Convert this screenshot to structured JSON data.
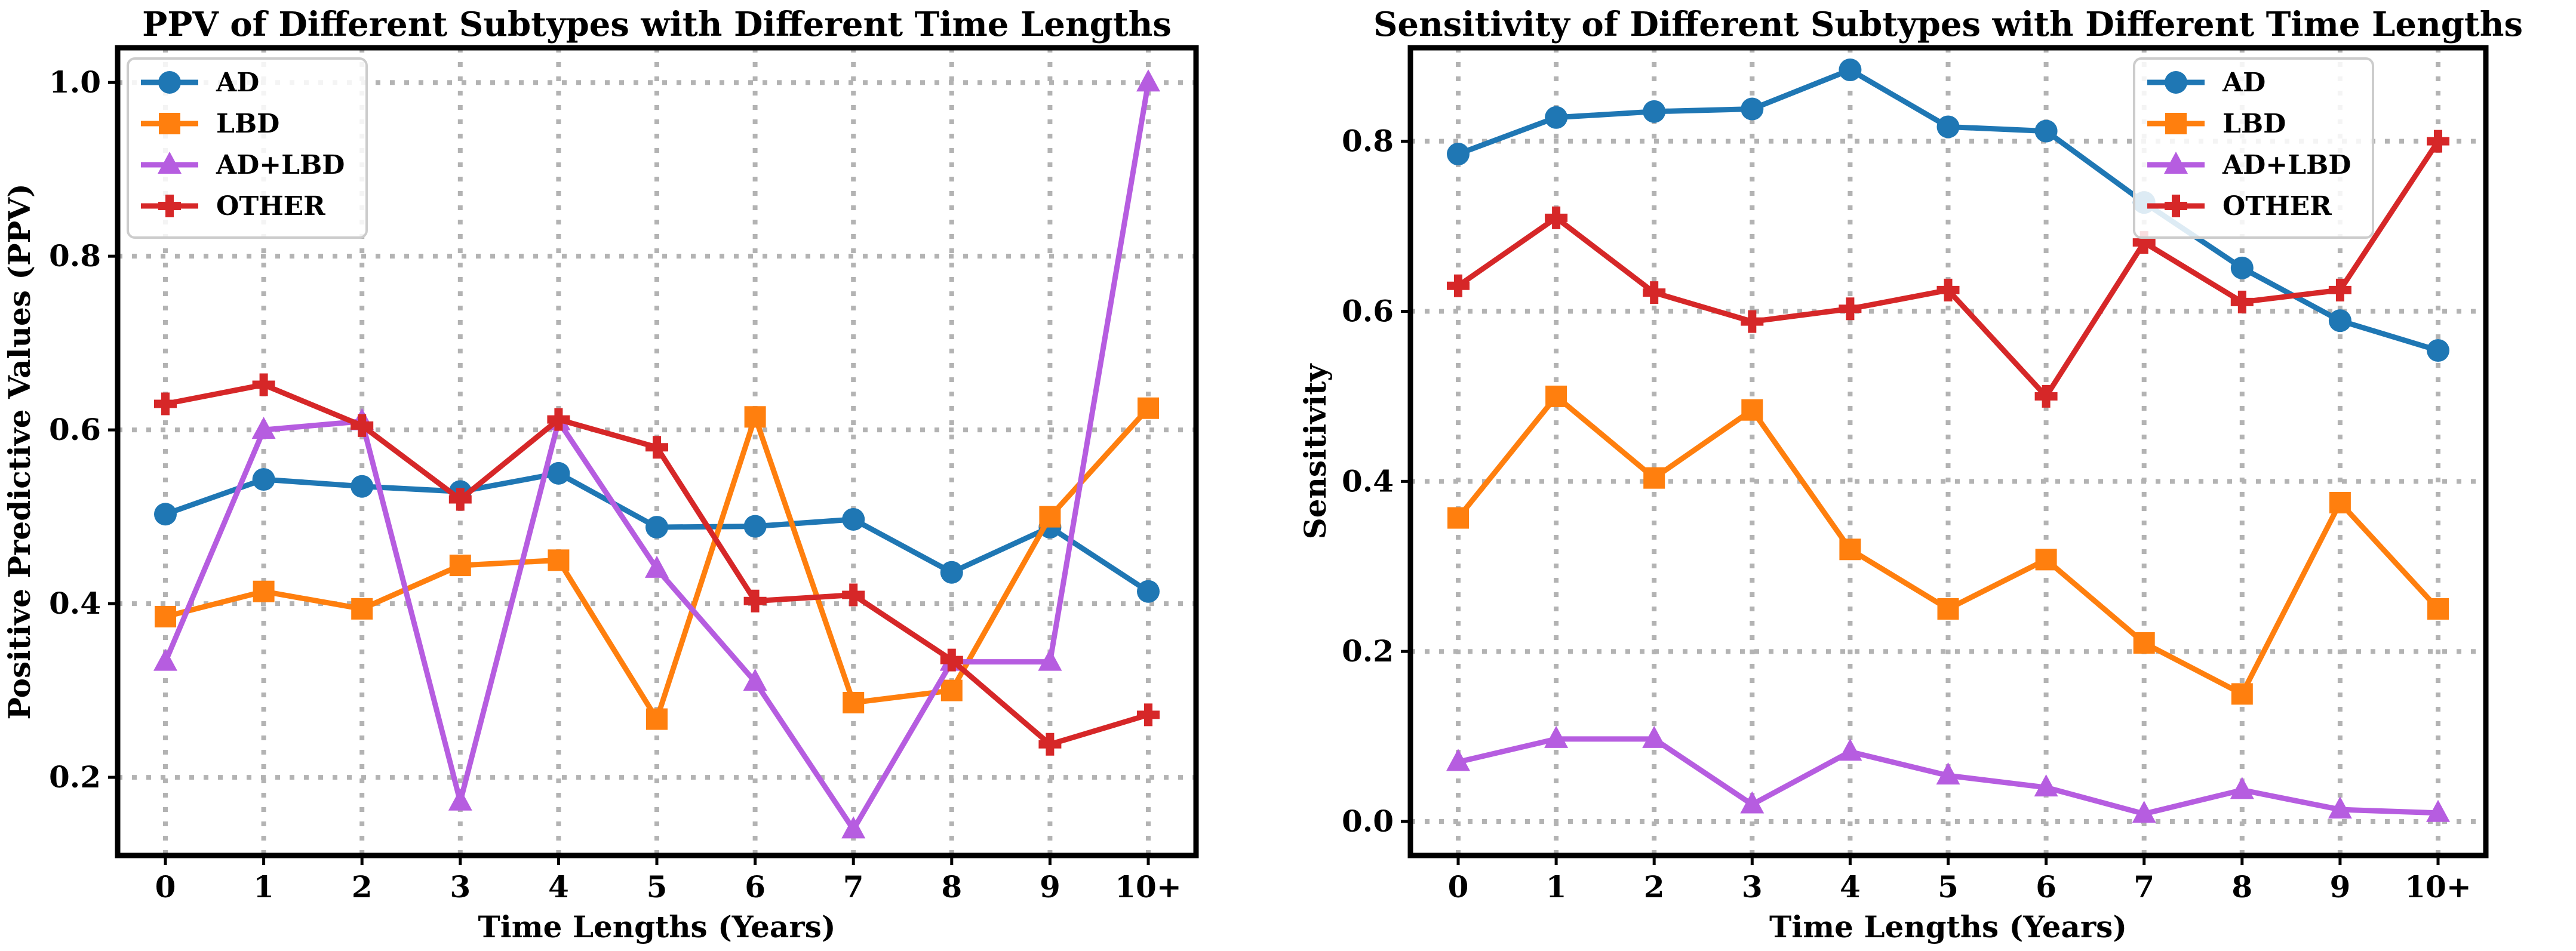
{
  "chart_data": [
    {
      "type": "line",
      "title": "PPV of Different Subtypes with Different Time Lengths",
      "xlabel": "Time Lengths (Years)",
      "ylabel": "Positive Predictive Values (PPV)",
      "categories": [
        "0",
        "1",
        "2",
        "3",
        "4",
        "5",
        "6",
        "7",
        "8",
        "9",
        "10+"
      ],
      "ylim": [
        0.11,
        1.04
      ],
      "yticks": [
        "0.2",
        "0.4",
        "0.6",
        "0.8",
        "1.0"
      ],
      "grid": true,
      "legend": "upper-left",
      "series": [
        {
          "name": "AD",
          "color": "#1f77b4",
          "marker": "circle",
          "values": [
            0.503,
            0.543,
            0.535,
            0.529,
            0.55,
            0.488,
            0.489,
            0.497,
            0.436,
            0.488,
            0.414
          ]
        },
        {
          "name": "LBD",
          "color": "#ff7f0e",
          "marker": "square",
          "values": [
            0.385,
            0.414,
            0.394,
            0.444,
            0.45,
            0.267,
            0.615,
            0.286,
            0.3,
            0.5,
            0.625
          ]
        },
        {
          "name": "AD+LBD",
          "color": "#b65de0",
          "marker": "triangle",
          "values": [
            0.333,
            0.6,
            0.61,
            0.172,
            0.61,
            0.44,
            0.31,
            0.14,
            0.333,
            0.333,
            1.0
          ]
        },
        {
          "name": "OTHER",
          "color": "#d62728",
          "marker": "plus",
          "values": [
            0.63,
            0.652,
            0.605,
            0.52,
            0.612,
            0.58,
            0.403,
            0.41,
            0.335,
            0.238,
            0.272
          ]
        }
      ]
    },
    {
      "type": "line",
      "title": "Sensitivity of Different Subtypes with Different Time Lengths",
      "xlabel": "Time Lengths (Years)",
      "ylabel": "Sensitivity",
      "categories": [
        "0",
        "1",
        "2",
        "3",
        "4",
        "5",
        "6",
        "7",
        "8",
        "9",
        "10+"
      ],
      "ylim": [
        -0.04,
        0.91
      ],
      "yticks": [
        "0.0",
        "0.2",
        "0.4",
        "0.6",
        "0.8"
      ],
      "grid": true,
      "legend": "upper-right",
      "series": [
        {
          "name": "AD",
          "color": "#1f77b4",
          "marker": "circle",
          "values": [
            0.785,
            0.828,
            0.835,
            0.838,
            0.884,
            0.817,
            0.812,
            0.728,
            0.651,
            0.589,
            0.554
          ]
        },
        {
          "name": "LBD",
          "color": "#ff7f0e",
          "marker": "square",
          "values": [
            0.357,
            0.5,
            0.404,
            0.484,
            0.32,
            0.25,
            0.308,
            0.21,
            0.15,
            0.375,
            0.25
          ]
        },
        {
          "name": "AD+LBD",
          "color": "#b65de0",
          "marker": "triangle",
          "values": [
            0.07,
            0.097,
            0.097,
            0.02,
            0.082,
            0.054,
            0.04,
            0.009,
            0.037,
            0.014,
            0.01
          ]
        },
        {
          "name": "OTHER",
          "color": "#d62728",
          "marker": "plus",
          "values": [
            0.63,
            0.71,
            0.622,
            0.588,
            0.603,
            0.625,
            0.5,
            0.681,
            0.611,
            0.625,
            0.8
          ]
        }
      ]
    }
  ]
}
